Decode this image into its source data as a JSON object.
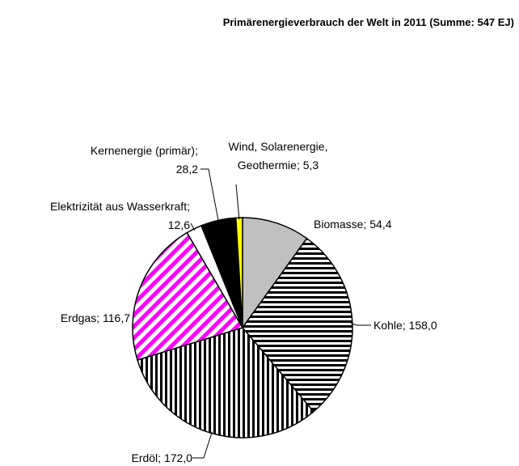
{
  "chart_data": {
    "type": "pie",
    "title": "Primärenergieverbrauch der Welt in 2011 (Summe: 547 EJ)",
    "categories": [
      "Biomasse",
      "Kohle",
      "Erdöl",
      "Erdgas",
      "Elektrizität aus Wasserkraft",
      "Kernenergie (primär)",
      "Wind, Solarenergie, Geothermie"
    ],
    "values": [
      54.4,
      158.0,
      172.0,
      116.7,
      12.6,
      28.2,
      5.3
    ],
    "value_labels": [
      "54,4",
      "158,0",
      "172,0",
      "116,7",
      "12,6",
      "28,2",
      "5,3"
    ],
    "label_separator": "; ",
    "colors": [
      "#c0c0c0",
      "#000000",
      "#000000",
      "#ff00ff",
      "#ffffff",
      "#000000",
      "#ffff00"
    ],
    "patterns": [
      "solid",
      "horizontal",
      "vertical",
      "diagonal",
      "solid",
      "solid",
      "solid"
    ]
  }
}
